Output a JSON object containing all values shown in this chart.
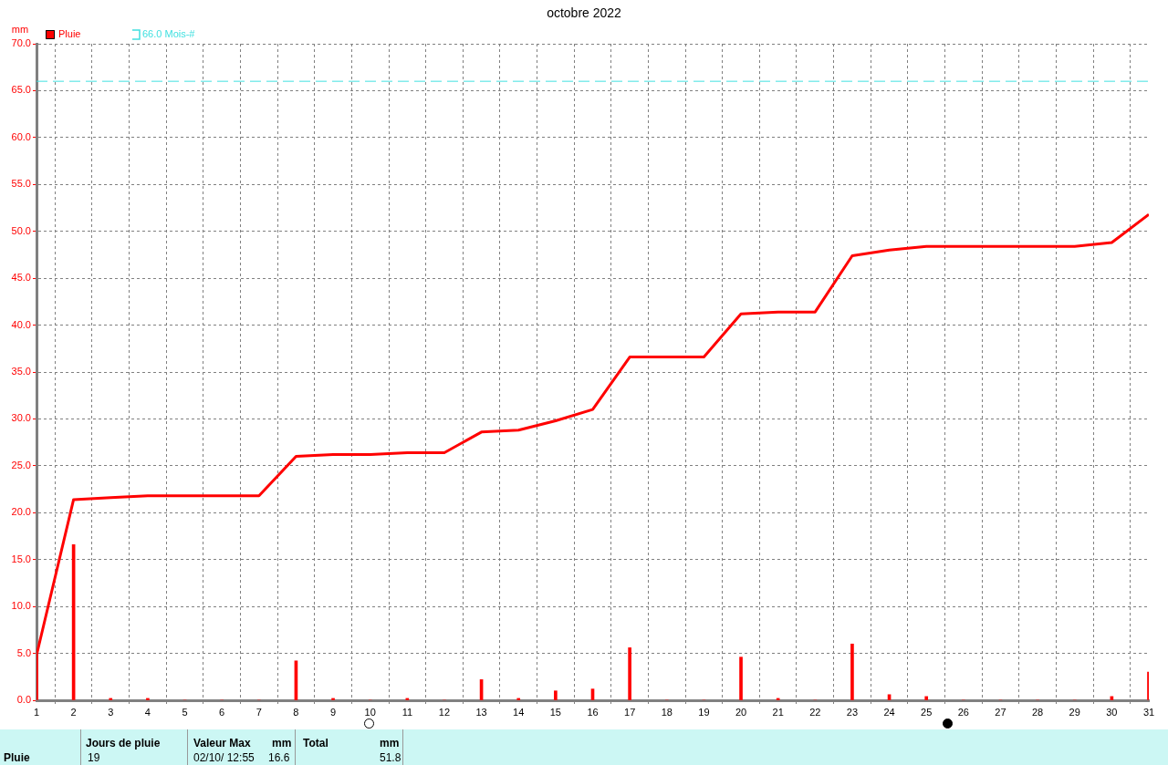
{
  "chart_data": {
    "type": "bar",
    "title": "octobre 2022",
    "ylabel": "mm",
    "x": [
      1,
      2,
      3,
      4,
      5,
      6,
      7,
      8,
      9,
      10,
      11,
      12,
      13,
      14,
      15,
      16,
      17,
      18,
      19,
      20,
      21,
      22,
      23,
      24,
      25,
      26,
      27,
      28,
      29,
      30,
      31
    ],
    "series": [
      {
        "name": "Pluie",
        "color": "#ff0000",
        "values": [
          4.8,
          16.6,
          0.2,
          0.2,
          0,
          0,
          0,
          4.2,
          0.2,
          0,
          0.2,
          0,
          2.2,
          0.2,
          1.0,
          1.2,
          5.6,
          0,
          0,
          4.6,
          0.2,
          0,
          6.0,
          0.6,
          0.4,
          0,
          0,
          0,
          0,
          0.4,
          3.0
        ]
      },
      {
        "type": "line",
        "color": "#ff0000",
        "values": [
          4.8,
          21.4,
          21.6,
          21.8,
          21.8,
          21.8,
          21.8,
          26.0,
          26.2,
          26.2,
          26.4,
          26.4,
          28.6,
          28.8,
          29.8,
          31.0,
          36.6,
          36.6,
          36.6,
          41.2,
          41.4,
          41.4,
          47.4,
          48.0,
          48.4,
          48.4,
          48.4,
          48.4,
          48.4,
          48.8,
          51.8
        ]
      }
    ],
    "xlim": [
      1,
      31
    ],
    "xticks": [
      1,
      2,
      3,
      4,
      5,
      6,
      7,
      8,
      9,
      10,
      11,
      12,
      13,
      14,
      15,
      16,
      17,
      18,
      19,
      20,
      21,
      22,
      23,
      24,
      25,
      26,
      27,
      28,
      29,
      30,
      31
    ],
    "ylim": [
      0,
      70
    ],
    "yticks": [
      {
        "value": 0,
        "label": "0.0"
      },
      {
        "value": 5,
        "label": "5.0"
      },
      {
        "value": 10,
        "label": "10.0"
      },
      {
        "value": 15,
        "label": "15.0"
      },
      {
        "value": 20,
        "label": "20.0"
      },
      {
        "value": 25,
        "label": "25.0"
      },
      {
        "value": 30,
        "label": "30.0"
      },
      {
        "value": 35,
        "label": "35.0"
      },
      {
        "value": 40,
        "label": "40.0"
      },
      {
        "value": 45,
        "label": "45.0"
      },
      {
        "value": 50,
        "label": "50.0"
      },
      {
        "value": 55,
        "label": "55.0"
      },
      {
        "value": 60,
        "label": "60.0"
      },
      {
        "value": 65,
        "label": "65.0"
      },
      {
        "value": 70,
        "label": "70.0"
      }
    ],
    "ref_lines": [
      {
        "axis": "y",
        "value": 66.0,
        "label": "66.0 Mois-#",
        "color": "#40e0e0",
        "line_style": "dashed"
      }
    ],
    "grid": true,
    "legend": "top left",
    "marker": "none",
    "annotations": [
      "Pluie",
      "Jours de pluie",
      "19",
      "Valeur Max",
      "mm",
      "02/10/ 12:55",
      "16.6",
      "Total",
      "mm",
      "51.8"
    ]
  }
}
